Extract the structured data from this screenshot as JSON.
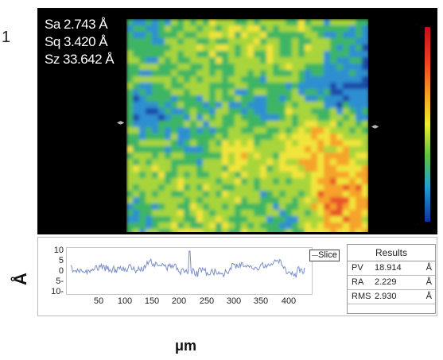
{
  "figure": {
    "number": "1"
  },
  "map": {
    "stats": [
      {
        "text": "Sa 2.743 Å"
      },
      {
        "text": "Sq 3.420 Å"
      },
      {
        "text": "Sz 33.642 Å"
      }
    ],
    "colors": [
      "#1f4aa8",
      "#2f8fd0",
      "#3cb563",
      "#a8d53a",
      "#f1e53a",
      "#f5a32a",
      "#e8522a"
    ]
  },
  "profile": {
    "legend": "Slice",
    "yticks": [
      "10",
      "5",
      "0",
      "5-",
      "10-"
    ],
    "xticks": [
      "50",
      "100",
      "150",
      "200",
      "250",
      "300",
      "350",
      "400"
    ],
    "line_color": "#7a8fc4"
  },
  "results": {
    "title": "Results",
    "rows": [
      {
        "label": "PV",
        "value": "18.914",
        "unit": "Å"
      },
      {
        "label": "RA",
        "value": "2.229",
        "unit": "Å"
      },
      {
        "label": "RMS",
        "value": "2.930",
        "unit": "Å"
      }
    ]
  },
  "axes": {
    "y_unit": "Å",
    "x_unit": "μm"
  }
}
